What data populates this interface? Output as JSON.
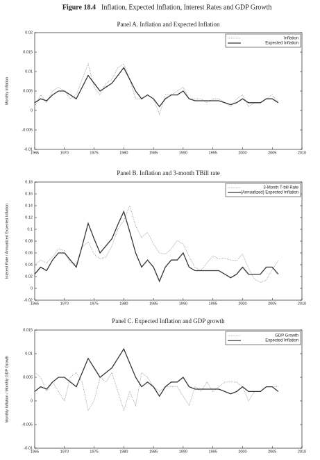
{
  "figure_label": "Figure 18.4",
  "figure_title": "Inflation, Expected Inflation, Interest Rates and GDP Growth",
  "chart_data": [
    {
      "type": "line",
      "title": "Panel A. Inflation and Expected Inflation",
      "ylabel": "Monthly Inflation",
      "x": [
        1965,
        1966,
        1967,
        1968,
        1969,
        1970,
        1971,
        1972,
        1973,
        1974,
        1975,
        1976,
        1977,
        1978,
        1979,
        1980,
        1981,
        1982,
        1983,
        1984,
        1985,
        1986,
        1987,
        1988,
        1989,
        1990,
        1991,
        1992,
        1993,
        1994,
        1995,
        1996,
        1997,
        1998,
        1999,
        2000,
        2001,
        2002,
        2003,
        2004,
        2005,
        2006
      ],
      "xlim": [
        1965,
        2010
      ],
      "xticks": [
        1965,
        1970,
        1975,
        1980,
        1985,
        1990,
        1995,
        2000,
        2005,
        2010
      ],
      "ylim": [
        -0.01,
        0.02
      ],
      "yticks": [
        -0.01,
        -0.005,
        0,
        0.005,
        0.01,
        0.015,
        0.02
      ],
      "legend": "upper right",
      "series": [
        {
          "name": "Inflation",
          "color": "#999999",
          "style": "dotted",
          "values": [
            0.001,
            0.004,
            0.002,
            0.005,
            0.006,
            0.005,
            0.003,
            0.004,
            0.008,
            0.012,
            0.006,
            0.004,
            0.007,
            0.008,
            0.011,
            0.012,
            0.008,
            0.003,
            0.003,
            0.004,
            0.003,
            -0.001,
            0.004,
            0.004,
            0.005,
            0.006,
            0.003,
            0.003,
            0.003,
            0.002,
            0.003,
            0.003,
            0.002,
            0.001,
            0.003,
            0.004,
            0.001,
            0.002,
            0.002,
            0.003,
            0.004,
            0.002
          ]
        },
        {
          "name": "Expected Inflation",
          "color": "#333333",
          "style": "solid",
          "values": [
            0.002,
            0.003,
            0.0025,
            0.004,
            0.005,
            0.005,
            0.004,
            0.003,
            0.006,
            0.009,
            0.007,
            0.005,
            0.006,
            0.007,
            0.009,
            0.011,
            0.008,
            0.005,
            0.003,
            0.004,
            0.003,
            0.001,
            0.003,
            0.004,
            0.004,
            0.005,
            0.003,
            0.0025,
            0.0025,
            0.0025,
            0.0025,
            0.0025,
            0.002,
            0.0015,
            0.002,
            0.003,
            0.002,
            0.002,
            0.002,
            0.003,
            0.003,
            0.002
          ]
        }
      ]
    },
    {
      "type": "line",
      "title": "Panel B. Inflation and 3-month TBill rate",
      "ylabel": "Interest Rate / Annualized Expected Inflation",
      "x": [
        1965,
        1966,
        1967,
        1968,
        1969,
        1970,
        1971,
        1972,
        1973,
        1974,
        1975,
        1976,
        1977,
        1978,
        1979,
        1980,
        1981,
        1982,
        1983,
        1984,
        1985,
        1986,
        1987,
        1988,
        1989,
        1990,
        1991,
        1992,
        1993,
        1994,
        1995,
        1996,
        1997,
        1998,
        1999,
        2000,
        2001,
        2002,
        2003,
        2004,
        2005,
        2006
      ],
      "xlim": [
        1965,
        2010
      ],
      "xticks": [
        1965,
        1970,
        1975,
        1980,
        1985,
        1990,
        1995,
        2000,
        2005,
        2010
      ],
      "ylim": [
        -0.02,
        0.18
      ],
      "yticks": [
        -0.02,
        0,
        0.02,
        0.04,
        0.06,
        0.08,
        0.1,
        0.12,
        0.14,
        0.16,
        0.18
      ],
      "legend": "upper right",
      "series": [
        {
          "name": "3-Month T-bill Rate",
          "color": "#999999",
          "style": "dotted",
          "values": [
            0.04,
            0.048,
            0.043,
            0.053,
            0.067,
            0.064,
            0.043,
            0.041,
            0.07,
            0.079,
            0.058,
            0.05,
            0.053,
            0.072,
            0.1,
            0.115,
            0.14,
            0.106,
            0.086,
            0.095,
            0.075,
            0.06,
            0.058,
            0.067,
            0.081,
            0.075,
            0.054,
            0.035,
            0.03,
            0.043,
            0.055,
            0.05,
            0.051,
            0.048,
            0.047,
            0.058,
            0.034,
            0.016,
            0.01,
            0.014,
            0.032,
            0.047
          ]
        },
        {
          "name": "(Annualized) Expected Inflation",
          "color": "#333333",
          "style": "solid",
          "values": [
            0.024,
            0.036,
            0.03,
            0.048,
            0.06,
            0.06,
            0.048,
            0.036,
            0.072,
            0.11,
            0.084,
            0.06,
            0.072,
            0.084,
            0.108,
            0.13,
            0.096,
            0.06,
            0.036,
            0.048,
            0.036,
            0.012,
            0.036,
            0.048,
            0.048,
            0.06,
            0.036,
            0.03,
            0.03,
            0.03,
            0.03,
            0.03,
            0.024,
            0.018,
            0.024,
            0.036,
            0.024,
            0.024,
            0.024,
            0.036,
            0.036,
            0.024
          ]
        }
      ]
    },
    {
      "type": "line",
      "title": "Panel C. Expected Inflation and GDP growth",
      "ylabel": "Monthly Inflation / Monthly GDP Growth",
      "x": [
        1965,
        1966,
        1967,
        1968,
        1969,
        1970,
        1971,
        1972,
        1973,
        1974,
        1975,
        1976,
        1977,
        1978,
        1979,
        1980,
        1981,
        1982,
        1983,
        1984,
        1985,
        1986,
        1987,
        1988,
        1989,
        1990,
        1991,
        1992,
        1993,
        1994,
        1995,
        1996,
        1997,
        1998,
        1999,
        2000,
        2001,
        2002,
        2003,
        2004,
        2005,
        2006
      ],
      "xlim": [
        1965,
        2010
      ],
      "xticks": [
        1965,
        1970,
        1975,
        1980,
        1985,
        1990,
        1995,
        2000,
        2005,
        2010
      ],
      "ylim": [
        -0.01,
        0.015
      ],
      "yticks": [
        -0.01,
        -0.005,
        0,
        0.005,
        0.01,
        0.015
      ],
      "legend": "upper right",
      "series": [
        {
          "name": "GDP Growth",
          "color": "#999999",
          "style": "dotted",
          "values": [
            0.006,
            0.005,
            0.002,
            0.004,
            0.002,
            0,
            0.005,
            0.006,
            0.004,
            -0.002,
            0,
            0.005,
            0.004,
            0.006,
            0.002,
            -0.002,
            0.002,
            -0.001,
            0.006,
            0.005,
            0.003,
            0.002,
            0.003,
            0.003,
            0.003,
            0.001,
            -0.001,
            0.003,
            0.002,
            0.004,
            0.002,
            0.003,
            0.004,
            0.004,
            0.004,
            0.003,
            0,
            0.002,
            0.002,
            0.003,
            0.003,
            0.003
          ]
        },
        {
          "name": "Expected Inflation",
          "color": "#333333",
          "style": "solid",
          "values": [
            0.002,
            0.003,
            0.0025,
            0.004,
            0.005,
            0.005,
            0.004,
            0.003,
            0.006,
            0.009,
            0.007,
            0.005,
            0.006,
            0.007,
            0.009,
            0.011,
            0.008,
            0.005,
            0.003,
            0.004,
            0.003,
            0.001,
            0.003,
            0.004,
            0.004,
            0.005,
            0.003,
            0.0025,
            0.0025,
            0.0025,
            0.0025,
            0.0025,
            0.002,
            0.0015,
            0.002,
            0.003,
            0.002,
            0.002,
            0.002,
            0.003,
            0.003,
            0.002
          ]
        }
      ]
    }
  ]
}
